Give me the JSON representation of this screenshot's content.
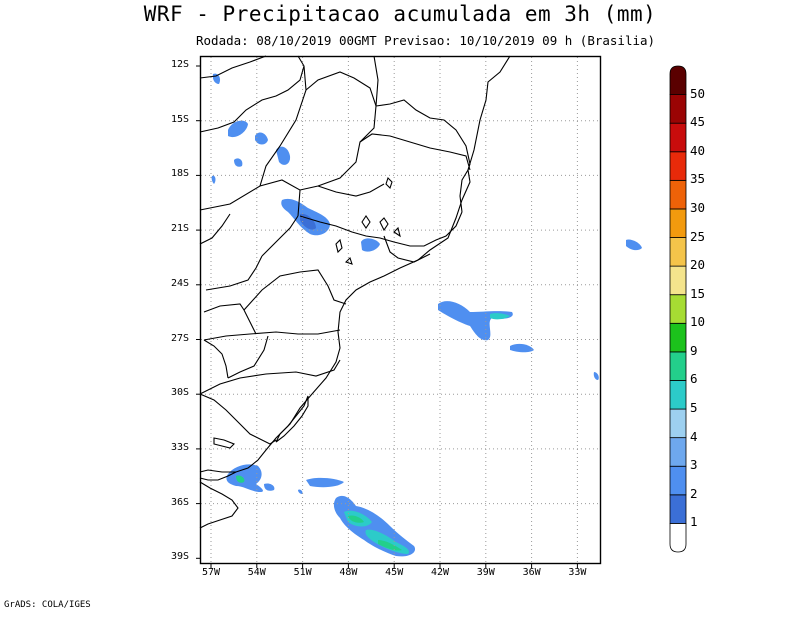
{
  "title": "WRF - Precipitacao acumulada em 3h (mm)",
  "subtitle": "Rodada: 08/10/2019 00GMT Previsao: 10/10/2019 09 h (Brasilia)",
  "footer": "GrADS: COLA/IGES",
  "lat_labels": [
    "12S",
    "15S",
    "18S",
    "21S",
    "24S",
    "27S",
    "30S",
    "33S",
    "36S",
    "39S"
  ],
  "lon_labels": [
    "57W",
    "54W",
    "51W",
    "48W",
    "45W",
    "42W",
    "39W",
    "36W",
    "33W"
  ],
  "colorbar": {
    "labels": [
      "1",
      "2",
      "3",
      "4",
      "5",
      "6",
      "9",
      "10",
      "15",
      "20",
      "25",
      "30",
      "35",
      "40",
      "45",
      "50"
    ],
    "colors": [
      "#ffffff",
      "#3b6fd6",
      "#4f8ff0",
      "#6ea8ee",
      "#9dd0f0",
      "#2ccbc9",
      "#23cf8b",
      "#1cc21c",
      "#a6dc33",
      "#f4e48c",
      "#f4c44a",
      "#f29a0e",
      "#ee6208",
      "#e82a0a",
      "#c80c0c",
      "#9a0404",
      "#5a0000"
    ]
  }
}
